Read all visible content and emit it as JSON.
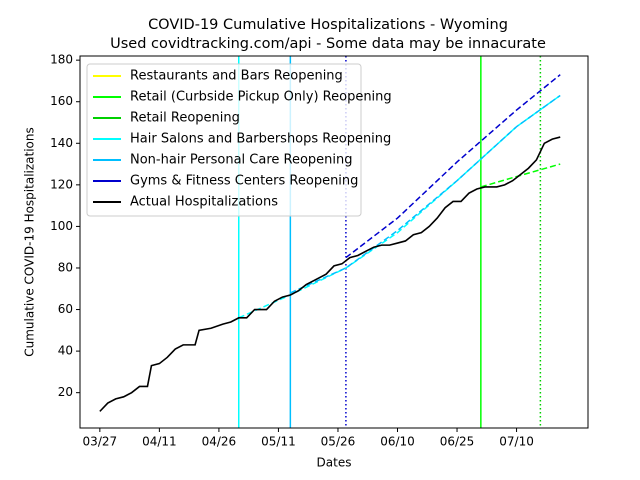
{
  "chart_data": {
    "type": "line",
    "title": "COVID-19 Cumulative Hospitalizations - Wyoming",
    "subtitle": "Used covidtracking.com/api - Some data may be innacurate",
    "x_label": "Dates",
    "y_label": "Cumulative COVID-19 Hospitalizations",
    "xlim": [
      "03/22",
      "07/28"
    ],
    "xticks": [
      "03/27",
      "04/11",
      "04/26",
      "05/11",
      "05/26",
      "06/10",
      "06/25",
      "07/10"
    ],
    "ylim": [
      3,
      182
    ],
    "yticks": [
      20,
      40,
      60,
      80,
      100,
      120,
      140,
      160,
      180
    ],
    "legend": "upper left",
    "series": [
      {
        "name": "Restaurants and Bars Reopening",
        "color": "#ffff00",
        "event": "05/01",
        "event_style": "solid",
        "x": [],
        "values": []
      },
      {
        "name": "Retail (Curbside Pickup Only) Reopening",
        "color": "#00ff00",
        "event": "07/01",
        "event_style": "solid",
        "x": [
          "07/01",
          "07/10",
          "07/21"
        ],
        "values": [
          119,
          124,
          130
        ]
      },
      {
        "name": "Retail Reopening",
        "color": "#00d000",
        "event": "07/16",
        "event_style": "dotted",
        "x": [],
        "values": []
      },
      {
        "name": "Hair Salons and Barbershops Reopening",
        "color": "#00ffff",
        "event": "05/01",
        "event_style": "solid",
        "x": [
          "05/01",
          "05/14",
          "05/28",
          "06/10",
          "06/25",
          "07/10",
          "07/21"
        ],
        "values": [
          56,
          67,
          80,
          97,
          122,
          148,
          163
        ]
      },
      {
        "name": "Non-hair Personal Care Reopening",
        "color": "#00bfff",
        "event": "05/14",
        "event_style": "solid",
        "x": [
          "05/14",
          "05/28",
          "06/10",
          "06/25",
          "07/10",
          "07/21"
        ],
        "values": [
          68,
          80,
          98,
          122,
          148,
          163
        ]
      },
      {
        "name": "Gyms & Fitness Centers Reopening",
        "color": "#0000cd",
        "event": "05/28",
        "event_style": "dotted",
        "x": [
          "05/28",
          "06/10",
          "06/25",
          "07/10",
          "07/21"
        ],
        "values": [
          85,
          104,
          131,
          156,
          173
        ]
      },
      {
        "name": "Actual Hospitalizations",
        "color": "#000000",
        "x": [
          "03/27",
          "03/29",
          "03/31",
          "04/02",
          "04/04",
          "04/06",
          "04/08",
          "04/09",
          "04/11",
          "04/13",
          "04/15",
          "04/17",
          "04/20",
          "04/21",
          "04/24",
          "04/27",
          "04/29",
          "05/01",
          "05/03",
          "05/05",
          "05/08",
          "05/10",
          "05/12",
          "05/14",
          "05/16",
          "05/18",
          "05/20",
          "05/23",
          "05/25",
          "05/27",
          "05/29",
          "05/31",
          "06/02",
          "06/04",
          "06/06",
          "06/08",
          "06/10",
          "06/12",
          "06/14",
          "06/16",
          "06/18",
          "06/20",
          "06/22",
          "06/24",
          "06/26",
          "06/28",
          "06/30",
          "07/02",
          "07/05",
          "07/07",
          "07/09",
          "07/11",
          "07/13",
          "07/15",
          "07/17",
          "07/19",
          "07/21"
        ],
        "values": [
          11,
          15,
          17,
          18,
          20,
          23,
          23,
          33,
          34,
          37,
          41,
          43,
          43,
          50,
          51,
          53,
          54,
          56,
          56,
          60,
          60,
          64,
          66,
          67,
          69,
          72,
          74,
          77,
          81,
          82,
          85,
          86,
          88,
          90,
          91,
          91,
          92,
          93,
          96,
          97,
          100,
          104,
          109,
          112,
          112,
          116,
          118,
          119,
          119,
          120,
          122,
          125,
          128,
          132,
          140,
          142,
          143
        ]
      }
    ]
  }
}
